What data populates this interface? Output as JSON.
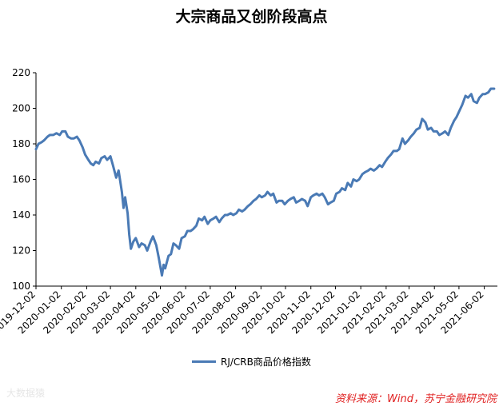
{
  "chart_data": {
    "type": "line",
    "title": "大宗商品又创阶段高点",
    "legend_position": "bottom",
    "grid": false,
    "ylim": [
      100,
      220
    ],
    "y_ticks": [
      100,
      120,
      140,
      160,
      180,
      200,
      220
    ],
    "x_ticks": [
      "2019-12-02",
      "2020-01-02",
      "2020-02-02",
      "2020-03-02",
      "2020-04-02",
      "2020-05-02",
      "2020-06-02",
      "2020-07-02",
      "2020-08-02",
      "2020-09-02",
      "2020-10-02",
      "2020-11-02",
      "2020-12-02",
      "2021-01-02",
      "2021-02-02",
      "2021-03-02",
      "2021-04-02",
      "2021-05-02",
      "2021-06-02"
    ],
    "color": "#4a7ab5",
    "series": [
      {
        "name": "RJ/CRB商品价格指数",
        "points": [
          [
            "2019-12-02",
            177
          ],
          [
            "2019-12-05",
            180
          ],
          [
            "2019-12-09",
            181
          ],
          [
            "2019-12-12",
            182
          ],
          [
            "2019-12-16",
            184
          ],
          [
            "2019-12-19",
            185
          ],
          [
            "2019-12-23",
            185
          ],
          [
            "2019-12-27",
            186
          ],
          [
            "2019-12-31",
            185
          ],
          [
            "2020-01-03",
            187
          ],
          [
            "2020-01-07",
            187
          ],
          [
            "2020-01-10",
            184
          ],
          [
            "2020-01-14",
            183
          ],
          [
            "2020-01-17",
            183
          ],
          [
            "2020-01-21",
            184
          ],
          [
            "2020-01-24",
            182
          ],
          [
            "2020-01-28",
            178
          ],
          [
            "2020-01-31",
            174
          ],
          [
            "2020-02-04",
            171
          ],
          [
            "2020-02-07",
            169
          ],
          [
            "2020-02-10",
            168
          ],
          [
            "2020-02-13",
            170
          ],
          [
            "2020-02-17",
            169
          ],
          [
            "2020-02-20",
            172
          ],
          [
            "2020-02-24",
            173
          ],
          [
            "2020-02-27",
            171
          ],
          [
            "2020-03-02",
            173
          ],
          [
            "2020-03-05",
            168
          ],
          [
            "2020-03-09",
            161
          ],
          [
            "2020-03-12",
            165
          ],
          [
            "2020-03-16",
            153
          ],
          [
            "2020-03-18",
            144
          ],
          [
            "2020-03-20",
            150
          ],
          [
            "2020-03-23",
            141
          ],
          [
            "2020-03-25",
            129
          ],
          [
            "2020-03-27",
            121
          ],
          [
            "2020-03-30",
            125
          ],
          [
            "2020-04-02",
            127
          ],
          [
            "2020-04-06",
            122
          ],
          [
            "2020-04-09",
            124
          ],
          [
            "2020-04-13",
            123
          ],
          [
            "2020-04-16",
            120
          ],
          [
            "2020-04-20",
            125
          ],
          [
            "2020-04-23",
            128
          ],
          [
            "2020-04-27",
            123
          ],
          [
            "2020-04-30",
            116
          ],
          [
            "2020-05-04",
            106
          ],
          [
            "2020-05-06",
            112
          ],
          [
            "2020-05-08",
            110
          ],
          [
            "2020-05-12",
            117
          ],
          [
            "2020-05-15",
            118
          ],
          [
            "2020-05-18",
            124
          ],
          [
            "2020-05-21",
            123
          ],
          [
            "2020-05-25",
            121
          ],
          [
            "2020-05-28",
            127
          ],
          [
            "2020-06-01",
            128
          ],
          [
            "2020-06-04",
            131
          ],
          [
            "2020-06-08",
            131
          ],
          [
            "2020-06-11",
            132
          ],
          [
            "2020-06-15",
            134
          ],
          [
            "2020-06-18",
            138
          ],
          [
            "2020-06-22",
            137
          ],
          [
            "2020-06-25",
            139
          ],
          [
            "2020-06-29",
            135
          ],
          [
            "2020-07-02",
            137
          ],
          [
            "2020-07-06",
            138
          ],
          [
            "2020-07-09",
            139
          ],
          [
            "2020-07-13",
            136
          ],
          [
            "2020-07-16",
            138
          ],
          [
            "2020-07-20",
            140
          ],
          [
            "2020-07-23",
            140
          ],
          [
            "2020-07-27",
            141
          ],
          [
            "2020-07-30",
            140
          ],
          [
            "2020-08-03",
            141
          ],
          [
            "2020-08-06",
            143
          ],
          [
            "2020-08-10",
            142
          ],
          [
            "2020-08-13",
            143
          ],
          [
            "2020-08-17",
            145
          ],
          [
            "2020-08-20",
            146
          ],
          [
            "2020-08-24",
            148
          ],
          [
            "2020-08-27",
            149
          ],
          [
            "2020-08-31",
            151
          ],
          [
            "2020-09-03",
            150
          ],
          [
            "2020-09-07",
            151
          ],
          [
            "2020-09-10",
            153
          ],
          [
            "2020-09-14",
            151
          ],
          [
            "2020-09-17",
            152
          ],
          [
            "2020-09-21",
            147
          ],
          [
            "2020-09-24",
            148
          ],
          [
            "2020-09-28",
            148
          ],
          [
            "2020-10-01",
            146
          ],
          [
            "2020-10-05",
            148
          ],
          [
            "2020-10-08",
            149
          ],
          [
            "2020-10-12",
            150
          ],
          [
            "2020-10-15",
            147
          ],
          [
            "2020-10-19",
            148
          ],
          [
            "2020-10-22",
            149
          ],
          [
            "2020-10-26",
            148
          ],
          [
            "2020-10-29",
            145
          ],
          [
            "2020-11-02",
            150
          ],
          [
            "2020-11-05",
            151
          ],
          [
            "2020-11-09",
            152
          ],
          [
            "2020-11-12",
            151
          ],
          [
            "2020-11-16",
            152
          ],
          [
            "2020-11-19",
            150
          ],
          [
            "2020-11-23",
            146
          ],
          [
            "2020-11-26",
            147
          ],
          [
            "2020-11-30",
            148
          ],
          [
            "2020-12-03",
            152
          ],
          [
            "2020-12-07",
            153
          ],
          [
            "2020-12-10",
            155
          ],
          [
            "2020-12-14",
            154
          ],
          [
            "2020-12-17",
            158
          ],
          [
            "2020-12-21",
            156
          ],
          [
            "2020-12-24",
            160
          ],
          [
            "2020-12-28",
            159
          ],
          [
            "2020-12-31",
            160
          ],
          [
            "2021-01-04",
            163
          ],
          [
            "2021-01-07",
            164
          ],
          [
            "2021-01-11",
            165
          ],
          [
            "2021-01-14",
            166
          ],
          [
            "2021-01-18",
            165
          ],
          [
            "2021-01-21",
            166
          ],
          [
            "2021-01-25",
            168
          ],
          [
            "2021-01-28",
            167
          ],
          [
            "2021-02-01",
            170
          ],
          [
            "2021-02-04",
            172
          ],
          [
            "2021-02-08",
            174
          ],
          [
            "2021-02-11",
            176
          ],
          [
            "2021-02-15",
            176
          ],
          [
            "2021-02-18",
            177
          ],
          [
            "2021-02-22",
            183
          ],
          [
            "2021-02-25",
            180
          ],
          [
            "2021-03-01",
            182
          ],
          [
            "2021-03-04",
            184
          ],
          [
            "2021-03-08",
            186
          ],
          [
            "2021-03-11",
            188
          ],
          [
            "2021-03-15",
            189
          ],
          [
            "2021-03-18",
            194
          ],
          [
            "2021-03-22",
            192
          ],
          [
            "2021-03-25",
            188
          ],
          [
            "2021-03-29",
            189
          ],
          [
            "2021-04-01",
            187
          ],
          [
            "2021-04-05",
            187
          ],
          [
            "2021-04-08",
            185
          ],
          [
            "2021-04-12",
            186
          ],
          [
            "2021-04-15",
            187
          ],
          [
            "2021-04-19",
            185
          ],
          [
            "2021-04-22",
            189
          ],
          [
            "2021-04-26",
            193
          ],
          [
            "2021-04-29",
            195
          ],
          [
            "2021-05-03",
            199
          ],
          [
            "2021-05-06",
            202
          ],
          [
            "2021-05-10",
            207
          ],
          [
            "2021-05-13",
            206
          ],
          [
            "2021-05-17",
            208
          ],
          [
            "2021-05-20",
            204
          ],
          [
            "2021-05-24",
            203
          ],
          [
            "2021-05-27",
            206
          ],
          [
            "2021-05-31",
            208
          ],
          [
            "2021-06-03",
            208
          ],
          [
            "2021-06-07",
            209
          ],
          [
            "2021-06-10",
            211
          ],
          [
            "2021-06-14",
            211
          ]
        ]
      }
    ]
  },
  "source_text": "资料来源：Wind，苏宁金融研究院",
  "watermark_text": "大数据猿"
}
